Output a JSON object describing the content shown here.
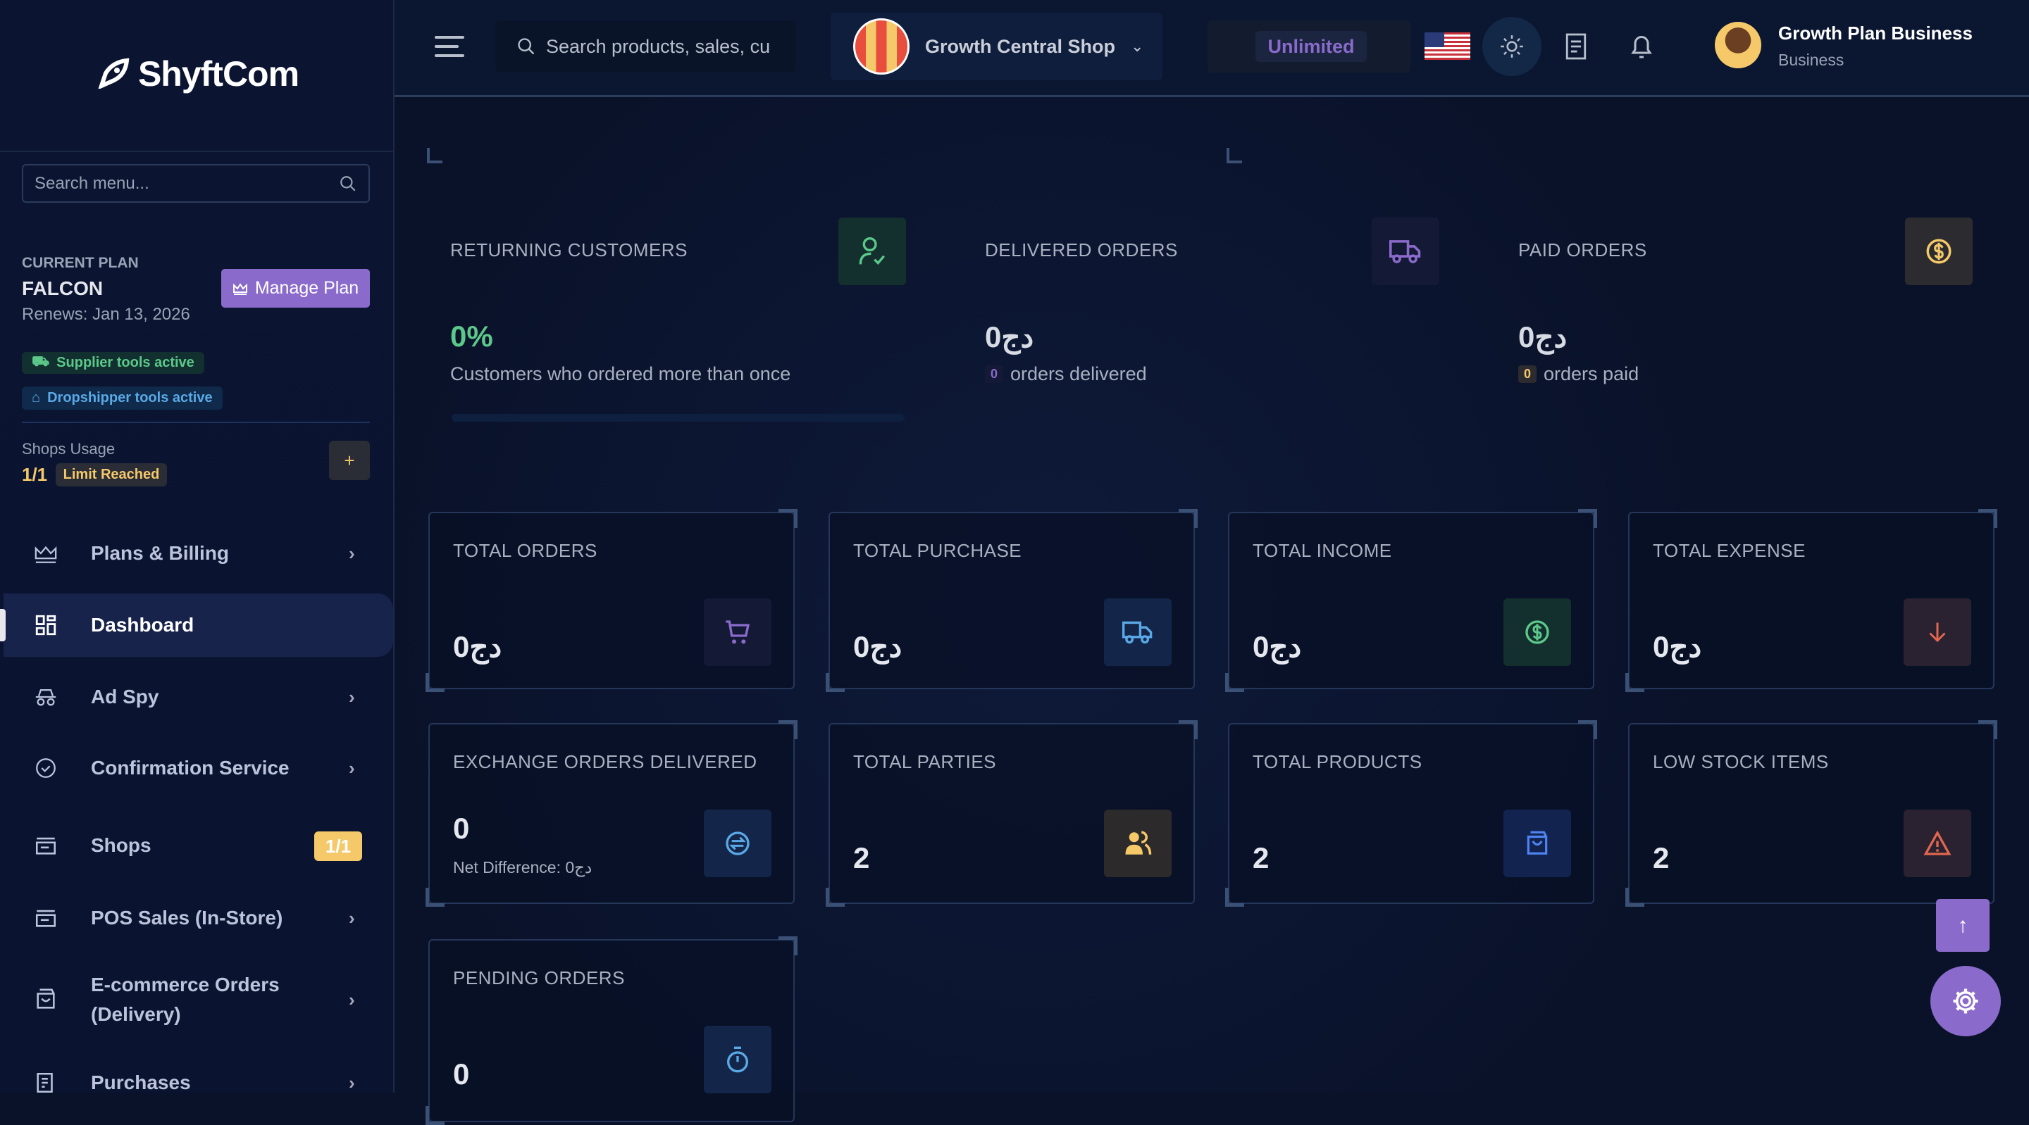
{
  "brand": {
    "name": "ShyftCom"
  },
  "sidebar": {
    "search_placeholder": "Search menu...",
    "plan": {
      "label": "CURRENT PLAN",
      "name": "FALCON",
      "renews": "Renews: Jan 13, 2026",
      "manage_label": "Manage Plan"
    },
    "badges": {
      "supplier": "Supplier tools active",
      "dropshipper": "Dropshipper tools active"
    },
    "usage": {
      "label": "Shops Usage",
      "value": "1/1",
      "status": "Limit Reached",
      "add": "+"
    },
    "items": [
      {
        "label": "Plans & Billing",
        "icon": "crown-icon",
        "chevron": true
      },
      {
        "label": "Dashboard",
        "icon": "dashboard-icon",
        "active": true
      },
      {
        "label": "Ad Spy",
        "icon": "spy-icon",
        "chevron": true
      },
      {
        "label": "Confirmation Service",
        "icon": "check-circle-icon",
        "chevron": true
      },
      {
        "label": "Shops",
        "icon": "store-icon",
        "badge": "1/1"
      },
      {
        "label": "POS Sales (In-Store)",
        "icon": "store-icon",
        "chevron": true
      },
      {
        "label": "E-commerce Orders",
        "label2": "(Delivery)",
        "icon": "shopping-bag-icon",
        "chevron": true
      },
      {
        "label": "Purchases",
        "icon": "receipt-icon",
        "chevron": true
      }
    ]
  },
  "topbar": {
    "search_placeholder": "Search products, sales, cu",
    "shop": "Growth Central Shop",
    "plan_badge": "Unlimited",
    "user": {
      "name": "Growth Plan Business",
      "role": "Business"
    }
  },
  "colors": {
    "accent": "#8a6bcb",
    "green": "#5cc98a",
    "blue": "#5aa9e6",
    "yellow": "#f5c96a",
    "red": "#e2674f"
  },
  "stats": [
    {
      "title": "RETURNING CUSTOMERS",
      "value": "0%",
      "sub": "Customers who ordered more than once",
      "icon": "user-check-icon",
      "progress_percent": 0
    },
    {
      "title": "DELIVERED ORDERS",
      "value": "0دج",
      "count": "0",
      "sub": "orders delivered",
      "icon": "truck-icon"
    },
    {
      "title": "PAID ORDERS",
      "value": "0دج",
      "count": "0",
      "sub": "orders paid",
      "icon": "dollar-circle-icon"
    }
  ],
  "cards": [
    {
      "title": "TOTAL ORDERS",
      "value": "0دج",
      "icon": "cart-icon"
    },
    {
      "title": "TOTAL PURCHASE",
      "value": "0دج",
      "icon": "truck-icon"
    },
    {
      "title": "TOTAL INCOME",
      "value": "0دج",
      "icon": "dollar-circle-icon"
    },
    {
      "title": "TOTAL EXPENSE",
      "value": "0دج",
      "icon": "arrow-down-icon"
    },
    {
      "title": "EXCHANGE ORDERS DELIVERED",
      "value": "0",
      "sub": "Net Difference: 0دج",
      "icon": "exchange-icon"
    },
    {
      "title": "TOTAL PARTIES",
      "value": "2",
      "icon": "users-icon"
    },
    {
      "title": "TOTAL PRODUCTS",
      "value": "2",
      "icon": "shopping-bag-icon"
    },
    {
      "title": "LOW STOCK ITEMS",
      "value": "2",
      "icon": "warning-icon"
    },
    {
      "title": "PENDING ORDERS",
      "value": "0",
      "icon": "timer-icon"
    }
  ]
}
